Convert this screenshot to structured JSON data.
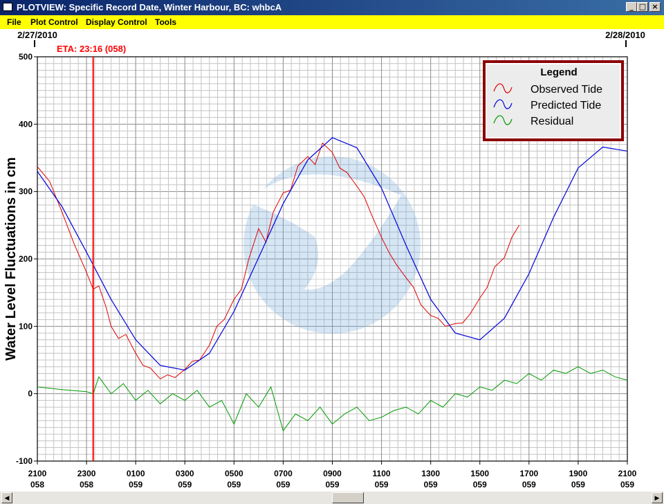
{
  "window": {
    "title": "PLOTVIEW: Specific Record Date, Winter Harbour, BC: whbcA",
    "buttons": {
      "minimize": "_",
      "maximize": "□",
      "close": "×"
    }
  },
  "menu": {
    "file": "File",
    "plot_control": "Plot Control",
    "display_control": "Display Control",
    "tools": "Tools"
  },
  "colors": {
    "observed": "#e00000",
    "predicted": "#0000dd",
    "residual": "#009900",
    "eta_line": "#ff0000",
    "legend_border": "#8b0000"
  },
  "chart_data": {
    "type": "line",
    "title": "",
    "ylabel": "Water Level Fluctuations in cm",
    "ylim": [
      -100,
      500
    ],
    "yticks": [
      "-100",
      "0",
      "100",
      "200",
      "300",
      "400",
      "500"
    ],
    "xlim": [
      0,
      24
    ],
    "xtick_labels": [
      {
        "time": "2100",
        "day": "058"
      },
      {
        "time": "2300",
        "day": "058"
      },
      {
        "time": "0100",
        "day": "059"
      },
      {
        "time": "0300",
        "day": "059"
      },
      {
        "time": "0500",
        "day": "059"
      },
      {
        "time": "0700",
        "day": "059"
      },
      {
        "time": "0900",
        "day": "059"
      },
      {
        "time": "1100",
        "day": "059"
      },
      {
        "time": "1300",
        "day": "059"
      },
      {
        "time": "1500",
        "day": "059"
      },
      {
        "time": "1700",
        "day": "059"
      },
      {
        "time": "1900",
        "day": "059"
      },
      {
        "time": "2100",
        "day": "059"
      }
    ],
    "date_left": "2/27/2010",
    "date_right": "2/28/2010",
    "eta": {
      "label": "ETA: 23:16 (058)",
      "x": 2.27
    },
    "legend": {
      "title": "Legend",
      "placement": "top-right"
    },
    "grid": true,
    "series": [
      {
        "name": "Observed Tide",
        "x": [
          0,
          0.5,
          1,
          1.5,
          2,
          2.27,
          2.5,
          2.8,
          3,
          3.3,
          3.6,
          4,
          4.3,
          4.6,
          5,
          5.3,
          5.6,
          6,
          6.3,
          6.6,
          7,
          7.3,
          7.6,
          8,
          8.3,
          8.6,
          9,
          9.3,
          9.6,
          10,
          10.3,
          10.6,
          11,
          11.3,
          11.6,
          12,
          12.3,
          12.6,
          13,
          13.3,
          13.6,
          14,
          14.3,
          14.6,
          15,
          15.3,
          15.6,
          16,
          16.3,
          16.6,
          17,
          17.3,
          17.6,
          18,
          18.3,
          18.6,
          19,
          19.3,
          19.6
        ],
        "y": [
          337,
          315,
          270,
          222,
          180,
          155,
          160,
          128,
          100,
          82,
          88,
          60,
          42,
          38,
          22,
          28,
          24,
          36,
          48,
          50,
          72,
          100,
          110,
          140,
          155,
          200,
          245,
          225,
          270,
          298,
          302,
          338,
          352,
          340,
          372,
          358,
          335,
          328,
          308,
          292,
          265,
          232,
          210,
          192,
          172,
          158,
          132,
          116,
          112,
          100,
          104,
          105,
          118,
          142,
          158,
          188,
          202,
          232,
          250
        ]
      },
      {
        "name": "Predicted Tide",
        "x": [
          0,
          1,
          2,
          3,
          4,
          5,
          6,
          7,
          8,
          9,
          10,
          11,
          12,
          13,
          14,
          15,
          16,
          17,
          18,
          19,
          20,
          21,
          22,
          23,
          24
        ],
        "y": [
          330,
          278,
          210,
          140,
          80,
          42,
          35,
          60,
          122,
          202,
          282,
          347,
          380,
          365,
          305,
          220,
          140,
          90,
          80,
          112,
          178,
          262,
          335,
          366,
          360
        ]
      },
      {
        "name": "Residual",
        "x": [
          0,
          1,
          2,
          2.27,
          2.5,
          3,
          3.5,
          4,
          4.5,
          5,
          5.5,
          6,
          6.5,
          7,
          7.5,
          8,
          8.5,
          9,
          9.5,
          10,
          10.5,
          11,
          11.5,
          12,
          12.5,
          13,
          13.5,
          14,
          14.5,
          15,
          15.5,
          16,
          16.5,
          17,
          17.5,
          18,
          18.5,
          19,
          19.5,
          20,
          20.5,
          21,
          21.5,
          22,
          22.5,
          23,
          23.5,
          24
        ],
        "y": [
          10,
          6,
          3,
          0,
          25,
          0,
          15,
          -10,
          5,
          -15,
          0,
          -10,
          5,
          -20,
          -10,
          -45,
          0,
          -20,
          10,
          -55,
          -30,
          -40,
          -20,
          -45,
          -30,
          -20,
          -40,
          -35,
          -25,
          -20,
          -30,
          -10,
          -20,
          0,
          -5,
          10,
          5,
          20,
          15,
          30,
          20,
          35,
          30,
          40,
          30,
          35,
          25,
          20
        ]
      }
    ]
  }
}
